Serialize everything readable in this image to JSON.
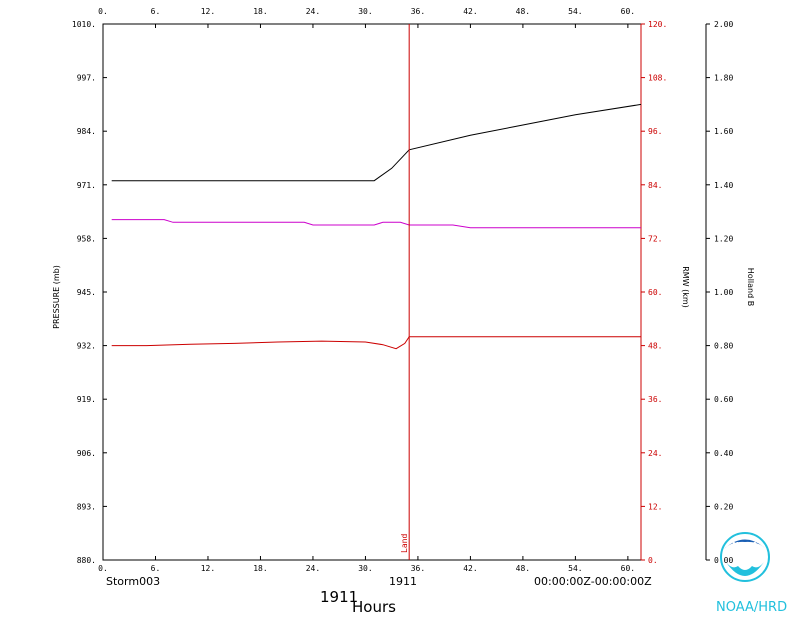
{
  "chart_data": {
    "type": "line",
    "x_axis": {
      "range": [
        0,
        61.5
      ],
      "ticks": [
        0,
        6,
        12,
        18,
        24,
        30,
        36,
        42,
        48,
        54,
        60
      ],
      "tick_labels_top": [
        "0.",
        "6.",
        "12.",
        "18.",
        "24.",
        "30.",
        "36.",
        "42.",
        "48.",
        "54.",
        "60."
      ],
      "tick_labels_bottom": [
        "0.",
        "6.",
        "12.",
        "18.",
        "24.",
        "30.",
        "36.",
        "42.",
        "48.",
        "54.",
        "60."
      ],
      "label": "Hours"
    },
    "y_left": {
      "label": "PRESSURE (mb)",
      "range": [
        880,
        1010
      ],
      "ticks": [
        880,
        893,
        906,
        919,
        932,
        945,
        958,
        971,
        984,
        997,
        1010
      ],
      "tick_labels": [
        "880.",
        "893.",
        "906.",
        "919.",
        "932.",
        "945.",
        "958.",
        "971.",
        "984.",
        "997.",
        "1010."
      ]
    },
    "y_right1": {
      "label": "RMW (km)",
      "range": [
        0,
        120
      ],
      "ticks": [
        0,
        12,
        24,
        36,
        48,
        60,
        72,
        84,
        96,
        108,
        120
      ],
      "tick_labels": [
        "0.",
        "12.",
        "24.",
        "36.",
        "48.",
        "60.",
        "72.",
        "84.",
        "96.",
        "108.",
        "120."
      ]
    },
    "y_right2": {
      "label": "Holland B",
      "range": [
        0,
        2
      ],
      "ticks": [
        0,
        0.2,
        0.4,
        0.6,
        0.8,
        1.0,
        1.2,
        1.4,
        1.6,
        1.8,
        2.0
      ],
      "tick_labels": [
        "0.00",
        "0.20",
        "0.40",
        "0.60",
        "0.80",
        "1.00",
        "1.20",
        "1.40",
        "1.60",
        "1.80",
        "2.00"
      ]
    },
    "series": [
      {
        "axis": "y_left",
        "color": "#000000",
        "x": [
          1,
          31,
          33,
          35,
          42,
          48,
          54,
          61.5
        ],
        "y": [
          972,
          972,
          975,
          979.5,
          983,
          985.5,
          988,
          990.5
        ]
      },
      {
        "axis": "y_right2",
        "color": "#cc00cc",
        "x": [
          1,
          7,
          8,
          23,
          24,
          31,
          32,
          34,
          35,
          40,
          42,
          61.5
        ],
        "y": [
          1.27,
          1.27,
          1.26,
          1.26,
          1.25,
          1.25,
          1.26,
          1.26,
          1.25,
          1.25,
          1.24,
          1.24
        ]
      },
      {
        "axis": "y_right1",
        "color": "#cc0000",
        "x": [
          1,
          5,
          10,
          15,
          20,
          25,
          30,
          32,
          33.5,
          34.5,
          35,
          40,
          48,
          61.5
        ],
        "y": [
          48,
          48,
          48.3,
          48.5,
          48.8,
          49,
          48.8,
          48.2,
          47.3,
          48.5,
          50,
          50,
          50,
          50
        ]
      }
    ],
    "event_line": {
      "x": 35,
      "label": "Land",
      "color": "#cc0000"
    }
  },
  "footer": {
    "storm_name": "Storm003",
    "year_center": "1911",
    "date_range": "00:00:00Z-00:00:00Z",
    "year_large": "1911",
    "hours_label": "Hours"
  },
  "logo": {
    "emblem_text": "NOAA",
    "org_label": "NOAA/HRD"
  }
}
